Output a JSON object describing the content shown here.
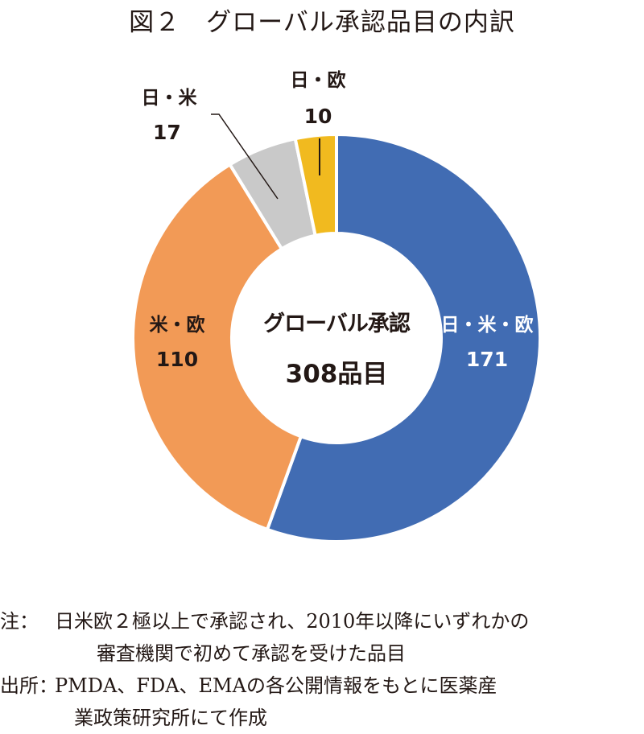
{
  "title": "図２　グローバル承認品目の内訳",
  "center": {
    "label": "グローバル承認",
    "total": "308品目"
  },
  "segments": [
    {
      "name": "日・米・欧",
      "value": "171",
      "color": "#416CB3",
      "text_color": "#ffffff"
    },
    {
      "name": "米・欧",
      "value": "110",
      "color": "#F29A56",
      "text_color": "#231815"
    },
    {
      "name": "日・米",
      "value": "17",
      "color": "#C9C9C9",
      "text_color": "#231815"
    },
    {
      "name": "日・欧",
      "value": "10",
      "color": "#F1BA1F",
      "text_color": "#231815"
    }
  ],
  "notes": {
    "note_key": "注：",
    "note_line1": "日米欧２極以上で承認され、2010年以降にいずれかの",
    "note_line2": "審査機関で初めて承認を受けた品目",
    "source_key": "出所：",
    "source_line1": "PMDA、FDA、EMAの各公開情報をもとに医薬産",
    "source_line2": "業政策研究所にて作成"
  },
  "chart_data": {
    "type": "pie",
    "variant": "donut",
    "title": "図２　グローバル承認品目の内訳",
    "center_text": "グローバル承認 308品目",
    "categories": [
      "日・米・欧",
      "米・欧",
      "日・米",
      "日・欧"
    ],
    "values": [
      171,
      110,
      17,
      10
    ],
    "colors": [
      "#416CB3",
      "#F29A56",
      "#C9C9C9",
      "#F1BA1F"
    ],
    "total": 308,
    "start_angle": "12 o'clock",
    "direction": "clockwise",
    "legend": "none (data labels on/near segments)",
    "annotations": [
      "注：日米欧２極以上で承認され、2010年以降にいずれかの審査機関で初めて承認を受けた品目",
      "出所：PMDA、FDA、EMAの各公開情報をもとに医薬産業政策研究所にて作成"
    ]
  }
}
